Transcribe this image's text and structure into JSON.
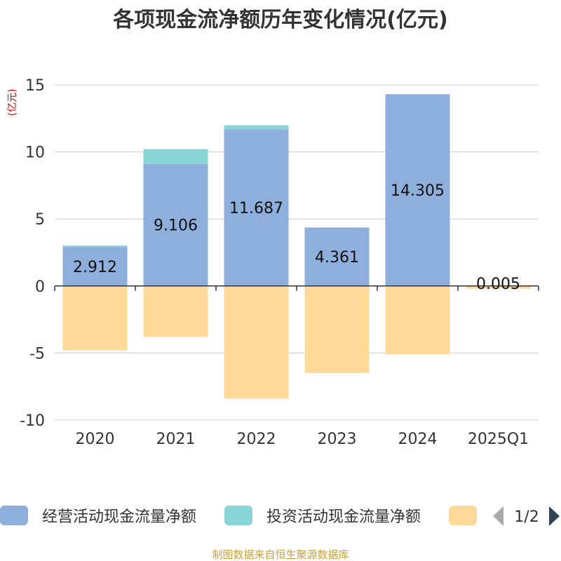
{
  "chart_data": {
    "type": "bar",
    "stacked": true,
    "title": "各项现金流净额历年变化情况(亿元)",
    "ylabel": "(亿元)",
    "categories": [
      "2020",
      "2021",
      "2022",
      "2023",
      "2024",
      "2025Q1"
    ],
    "ylim": [
      -10,
      15
    ],
    "yticks": [
      15,
      10,
      5,
      0,
      -5,
      -10
    ],
    "series": [
      {
        "name": "经营活动现金流量净额",
        "color": "#8eaedb",
        "values": [
          2.912,
          9.106,
          11.687,
          4.361,
          14.305,
          0.005
        ],
        "show_labels": true
      },
      {
        "name": "投资活动现金流量净额",
        "color": "#87d5d5",
        "values": [
          0.1,
          1.1,
          0.3,
          0.0,
          0.0,
          0.0
        ],
        "show_labels": false
      },
      {
        "name": "",
        "color": "#fed99a",
        "values": [
          -4.8,
          -3.8,
          -8.4,
          -6.5,
          -5.1,
          -0.2
        ],
        "show_labels": false
      }
    ],
    "legend": {
      "position": "bottom",
      "page": "1/2"
    },
    "source": "制图数据来自恒生聚源数据库"
  }
}
